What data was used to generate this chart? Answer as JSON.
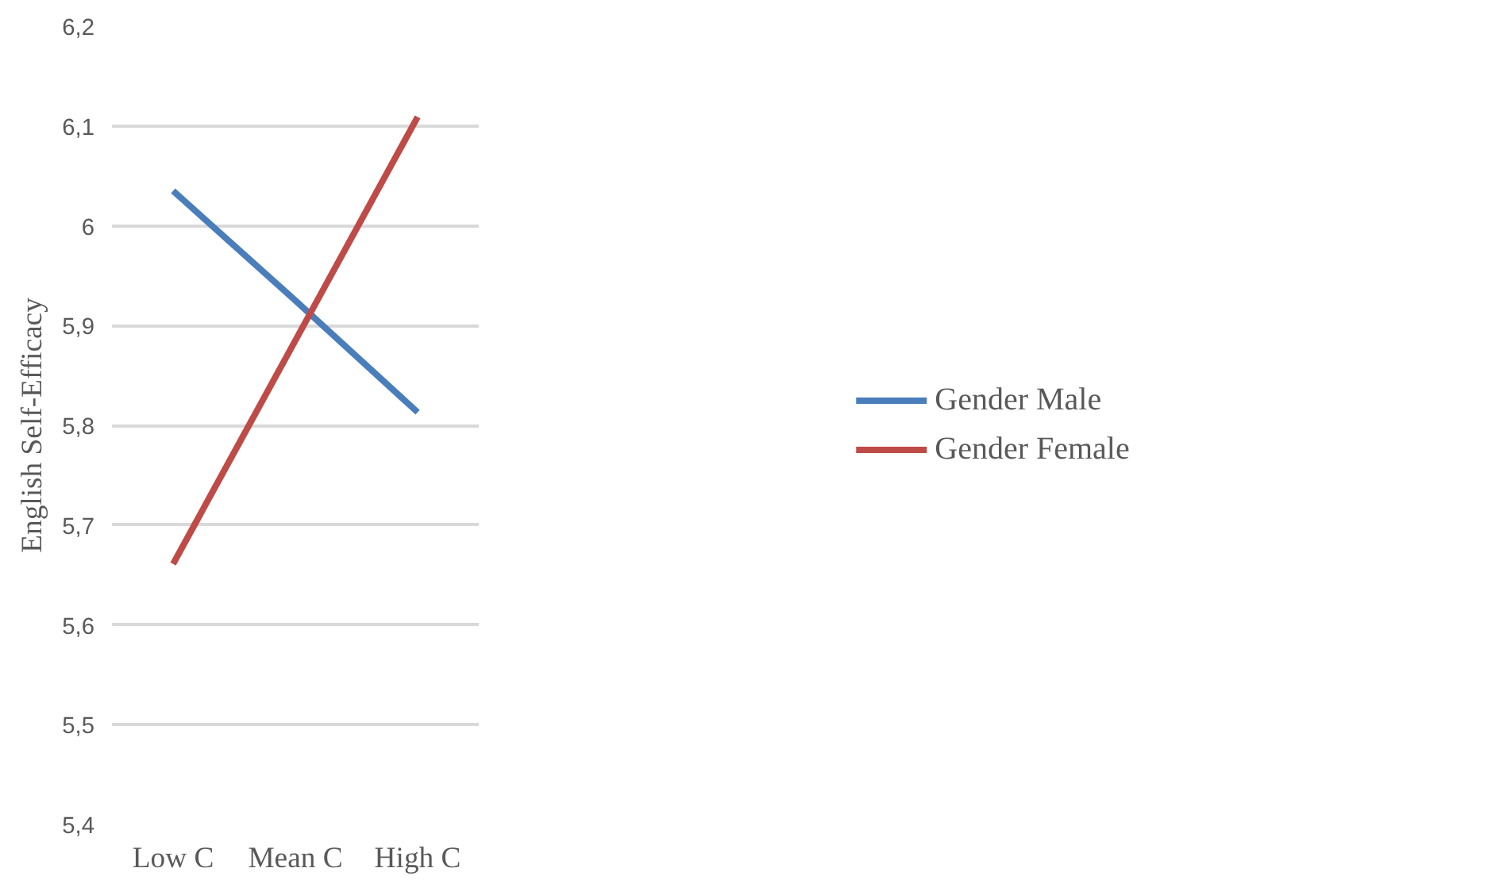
{
  "chart_data": {
    "type": "line",
    "ylabel": "English Self-Efficacy",
    "categories": [
      "Low C",
      "Mean C",
      "High C"
    ],
    "series": [
      {
        "name": "Gender Male",
        "color": "#4a7ebb",
        "values": [
          6.035,
          5.925,
          5.813
        ]
      },
      {
        "name": "Gender Female",
        "color": "#be4b48",
        "values": [
          5.661,
          5.885,
          6.109
        ]
      }
    ],
    "ylim": [
      5.4,
      6.2
    ],
    "yticks": [
      {
        "value": 5.4,
        "label": "5,4"
      },
      {
        "value": 5.5,
        "label": "5,5"
      },
      {
        "value": 5.6,
        "label": "5,6"
      },
      {
        "value": 5.7,
        "label": "5,7"
      },
      {
        "value": 5.8,
        "label": "5,8"
      },
      {
        "value": 5.9,
        "label": "5,9"
      },
      {
        "value": 6,
        "label": "6"
      },
      {
        "value": 6.1,
        "label": "6,1"
      },
      {
        "value": 6.2,
        "label": "6,2"
      }
    ],
    "grid": "y",
    "legend": "right",
    "marker": "none",
    "line_style": "solid"
  }
}
